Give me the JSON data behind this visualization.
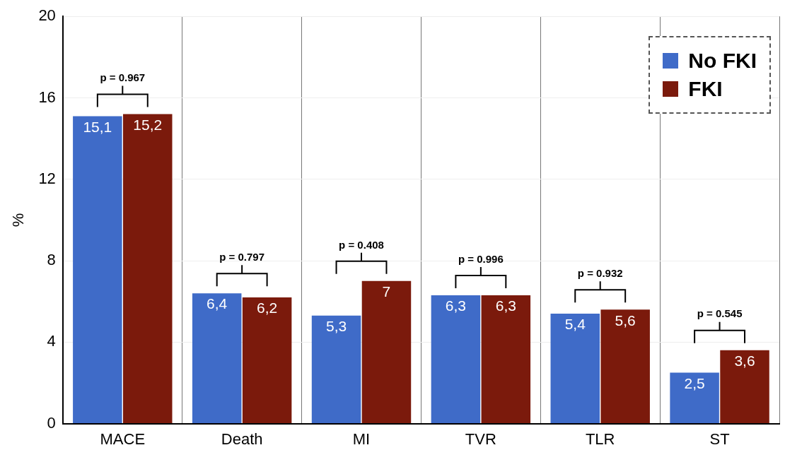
{
  "chart_data": {
    "type": "bar",
    "ylabel": "%",
    "categories": [
      "MACE",
      "Death",
      "MI",
      "TVR",
      "TLR",
      "ST"
    ],
    "series": [
      {
        "name": "No FKI",
        "color": "#3f6bc8",
        "values": [
          15.1,
          6.4,
          5.3,
          6.3,
          5.4,
          2.5
        ],
        "value_labels": [
          "15,1",
          "6,4",
          "5,3",
          "6,3",
          "5,4",
          "2,5"
        ]
      },
      {
        "name": "FKI",
        "color": "#7b1a0c",
        "values": [
          15.2,
          6.2,
          7,
          6.3,
          5.6,
          3.6
        ],
        "value_labels": [
          "15,2",
          "6,2",
          "7",
          "6,3",
          "5,6",
          "3,6"
        ]
      }
    ],
    "ylim": [
      0,
      20
    ],
    "yticks": [
      0,
      4,
      8,
      12,
      16,
      20
    ],
    "grid": true,
    "legend": "top right",
    "annotations": [
      "p = 0.967",
      "p = 0.797",
      "p = 0.408",
      "p = 0.996",
      "p = 0.932",
      "p = 0.545"
    ]
  }
}
